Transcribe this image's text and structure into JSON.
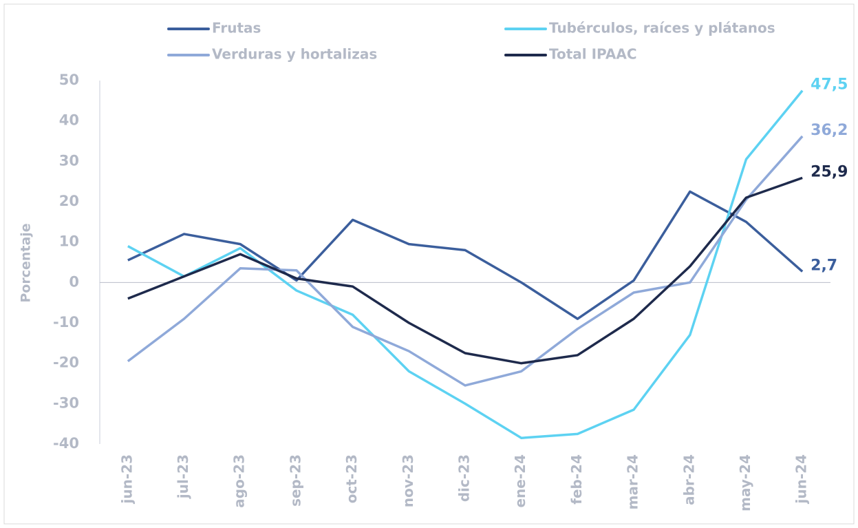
{
  "chart_data": {
    "type": "line",
    "y_label": "Porcentaje",
    "categories": [
      "jun-23",
      "jul-23",
      "ago-23",
      "sep-23",
      "oct-23",
      "nov-23",
      "dic-23",
      "ene-24",
      "feb-24",
      "mar-24",
      "abr-24",
      "may-24",
      "jun-24"
    ],
    "series": [
      {
        "name": "Frutas",
        "color": "#3b5e9c",
        "values": [
          5.5,
          12,
          9.5,
          0.5,
          15.5,
          9.5,
          8,
          0,
          -9,
          0.5,
          22.5,
          15,
          2.7
        ],
        "value_labels": [
          null,
          null,
          null,
          null,
          null,
          null,
          null,
          null,
          null,
          null,
          null,
          null,
          "2,7"
        ]
      },
      {
        "name": "Tubérculos, raíces y plátanos",
        "color": "#5dd2f2",
        "values": [
          9,
          1.5,
          8.5,
          -2,
          -8,
          -22,
          -30,
          -38.5,
          -37.5,
          -31.5,
          -13,
          30.5,
          47.5
        ],
        "value_labels": [
          null,
          null,
          null,
          null,
          null,
          null,
          null,
          null,
          null,
          null,
          null,
          null,
          "47,5"
        ]
      },
      {
        "name": "Verduras y hortalizas",
        "color": "#8fa9d9",
        "values": [
          -19.5,
          -9,
          3.5,
          3,
          -11,
          -17,
          -25.5,
          -22,
          -11.5,
          -2.5,
          0,
          20.5,
          36.2
        ],
        "value_labels": [
          null,
          null,
          null,
          null,
          null,
          null,
          null,
          null,
          null,
          null,
          null,
          null,
          "36,2"
        ]
      },
      {
        "name": "Total IPAAC",
        "color": "#1e2a4c",
        "values": [
          -4,
          1.5,
          7,
          1,
          -1,
          -10,
          -17.5,
          -20,
          -18,
          -9,
          4,
          21,
          25.9
        ],
        "value_labels": [
          null,
          null,
          null,
          null,
          null,
          null,
          null,
          null,
          null,
          null,
          null,
          null,
          "25,9"
        ]
      }
    ],
    "ylim": [
      -40,
      50
    ],
    "yticks": [
      50,
      40,
      30,
      20,
      10,
      0,
      -10,
      -20,
      -30,
      -40
    ]
  }
}
